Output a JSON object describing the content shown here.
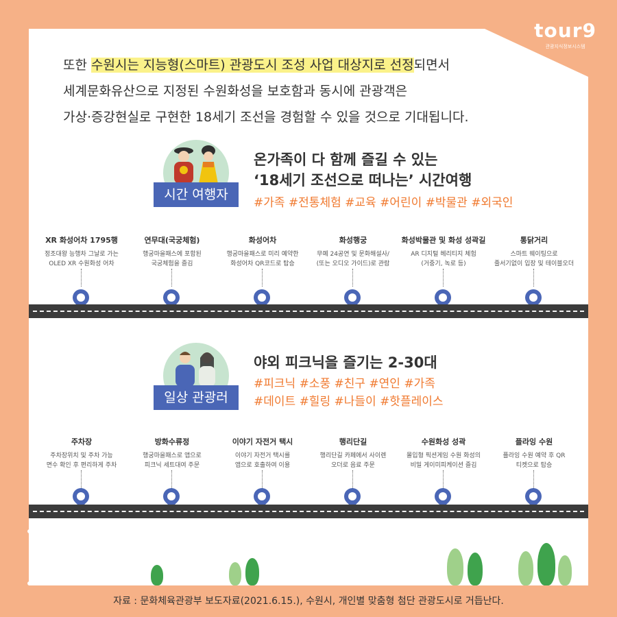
{
  "logo": {
    "word": "tour9",
    "sub": "관광지식정보시스템"
  },
  "intro": {
    "line1_pre": "또한 ",
    "line1_hl": "수원시는 지능형(스마트) 관광도시 조성 사업 대상지로 선정",
    "line1_post": "되면서",
    "line2": "세계문화유산으로 지정된 수원화성을 보호함과 동시에 관광객은",
    "line3": "가상·증강현실로 구현한 18세기 조선을 경험할 수 있을 것으로 기대됩니다."
  },
  "section1": {
    "badge": "시간 여행자",
    "title1": "온가족이 다 함께 즐길 수 있는",
    "title2": "‘18세기 조선으로 떠나는’ 시간여행",
    "tags": "#가족 #전통체험 #교육 #어린이 #박물관 #외국인",
    "stops": [
      {
        "title": "XR 화성어차 1795행",
        "desc1": "정조대왕 능행차 그날로 가는",
        "desc2": "OLED XR 수원화성 어차"
      },
      {
        "title": "연무대(국궁체험)",
        "desc1": "행궁마을패스에 포함된",
        "desc2": "국궁체험을 즐김"
      },
      {
        "title": "화성어차",
        "desc1": "행궁마을패스로 미리 예약한",
        "desc2": "화성어차 QR코드로 탑승"
      },
      {
        "title": "화성행궁",
        "desc1": "무예 24공연 및 문화해설사/",
        "desc2": "(또는 오디오 가이드)로 관람"
      },
      {
        "title": "화성박물관 및 화성 성곽길",
        "desc1": "AR 디지털 헤리티지 체험",
        "desc2": "(거중기, 녹로 등)"
      },
      {
        "title": "통닭거리",
        "desc1": "스마트 웨이팅으로",
        "desc2": "줄서기없이 입장 및 테이블오더"
      }
    ]
  },
  "section2": {
    "badge": "일상 관광러",
    "title1": "야외 피크닉을 즐기는 2-30대",
    "tags1": "#피크닉 #소풍 #친구 #연인 #가족",
    "tags2": "#데이트 #힐링 #나들이 #핫플레이스",
    "stops": [
      {
        "title": "주차장",
        "desc1": "주차장위치 및 주차 가능",
        "desc2": "면수 확인 후 편리하게 주차"
      },
      {
        "title": "방화수류정",
        "desc1": "행궁마을패스로 앱으로",
        "desc2": "피크닉 세트대여 주문"
      },
      {
        "title": "이야기 자전거 택시",
        "desc1": "이야기 자전거 택시를",
        "desc2": "앱으로 호출하여 이용"
      },
      {
        "title": "행리단길",
        "desc1": "행리단길 카페에서 사이렌",
        "desc2": "오더로 음료 주문"
      },
      {
        "title": "수원화성 성곽",
        "desc1": "몰입형 픽션게임 수원 화성의",
        "desc2": "비밀 게이미피케이션 즐김"
      },
      {
        "title": "플라잉 수원",
        "desc1": "플라잉 수원 예약 후 QR",
        "desc2": "티켓으로 탑승"
      }
    ]
  },
  "source": "자료 : 문화체육관광부 보도자료(2021.6.15.), 수원시, 개인별 맞춤형 첨단 관광도시로 거듭난다.",
  "colors": {
    "background": "#f6b187",
    "accent_blue": "#4a66b6",
    "tag_orange": "#f07a30",
    "highlight": "#fbf28a"
  }
}
